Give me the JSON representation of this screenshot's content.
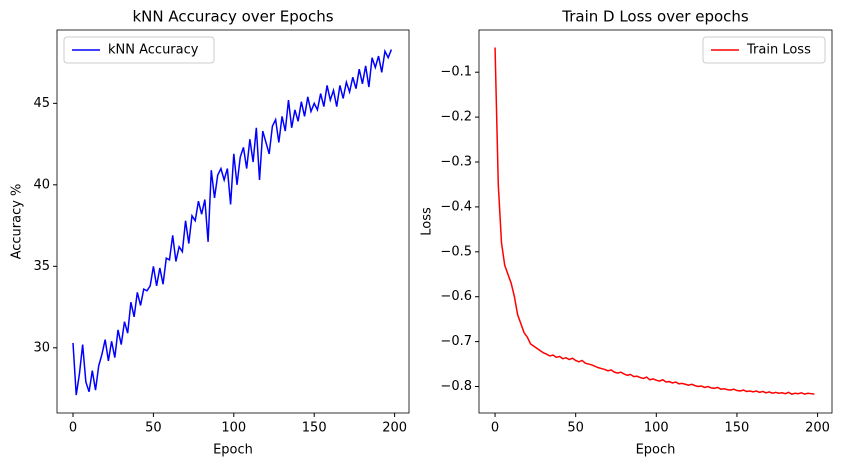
{
  "chart_data": [
    {
      "type": "line",
      "title": "kNN Accuracy over Epochs",
      "xlabel": "Epoch",
      "ylabel": "Accuracy %",
      "legend": "upper left",
      "xlim": [
        -9.95,
        208.95
      ],
      "xticks": [
        0,
        50,
        100,
        150,
        200
      ],
      "ylim": [
        26.0,
        49.5
      ],
      "yticks": [
        30,
        35,
        40,
        45
      ],
      "x": [
        0,
        2,
        4,
        6,
        8,
        10,
        12,
        14,
        16,
        18,
        20,
        22,
        24,
        26,
        28,
        30,
        32,
        34,
        36,
        38,
        40,
        42,
        44,
        46,
        48,
        50,
        52,
        54,
        56,
        58,
        60,
        62,
        64,
        66,
        68,
        70,
        72,
        74,
        76,
        78,
        80,
        82,
        84,
        86,
        88,
        90,
        92,
        94,
        96,
        98,
        100,
        102,
        104,
        106,
        108,
        110,
        112,
        114,
        116,
        118,
        120,
        122,
        124,
        126,
        128,
        130,
        132,
        134,
        136,
        138,
        140,
        142,
        144,
        146,
        148,
        150,
        152,
        154,
        156,
        158,
        160,
        162,
        164,
        166,
        168,
        170,
        172,
        174,
        176,
        178,
        180,
        182,
        184,
        186,
        188,
        190,
        192,
        194,
        196,
        198
      ],
      "series": [
        {
          "name": "kNN Accuracy",
          "color": "#0000ff",
          "values": [
            30.3,
            27.1,
            28.4,
            30.2,
            27.9,
            27.3,
            28.6,
            27.4,
            28.9,
            29.6,
            30.5,
            29.2,
            30.4,
            29.4,
            31.1,
            30.2,
            31.6,
            30.9,
            32.8,
            31.9,
            33.4,
            32.6,
            33.6,
            33.5,
            33.8,
            35.0,
            33.8,
            34.9,
            33.9,
            35.5,
            35.4,
            36.9,
            35.3,
            36.2,
            35.9,
            37.8,
            36.4,
            38.1,
            37.8,
            39.0,
            38.2,
            39.1,
            36.5,
            40.9,
            39.2,
            40.6,
            41.0,
            40.3,
            41.0,
            38.8,
            41.9,
            40.0,
            41.7,
            42.3,
            41.0,
            42.8,
            41.4,
            43.5,
            40.3,
            43.3,
            42.6,
            41.9,
            43.6,
            44.0,
            42.6,
            44.2,
            43.3,
            45.2,
            43.5,
            44.6,
            43.9,
            45.1,
            44.2,
            45.4,
            44.5,
            45.0,
            44.6,
            45.6,
            44.8,
            46.1,
            45.2,
            45.8,
            44.8,
            46.1,
            45.3,
            46.3,
            45.7,
            46.6,
            45.9,
            47.1,
            46.2,
            47.3,
            46.0,
            47.8,
            47.2,
            47.9,
            46.9,
            48.2,
            47.8,
            48.3
          ]
        }
      ]
    },
    {
      "type": "line",
      "title": "Train D Loss over epochs",
      "xlabel": "Epoch",
      "ylabel": "Loss",
      "legend": "upper right",
      "xlim": [
        -9.95,
        208.95
      ],
      "xticks": [
        0,
        50,
        100,
        150,
        200
      ],
      "ylim": [
        -0.859,
        -0.006
      ],
      "yticks": [
        {
          "value": -0.8,
          "label": "−0.8"
        },
        {
          "value": -0.7,
          "label": "−0.7"
        },
        {
          "value": -0.6,
          "label": "−0.6"
        },
        {
          "value": -0.5,
          "label": "−0.5"
        },
        {
          "value": -0.4,
          "label": "−0.4"
        },
        {
          "value": -0.3,
          "label": "−0.3"
        },
        {
          "value": -0.2,
          "label": "−0.2"
        },
        {
          "value": -0.1,
          "label": "−0.1"
        }
      ],
      "x": [
        0,
        2,
        4,
        6,
        8,
        10,
        12,
        14,
        16,
        18,
        20,
        22,
        24,
        26,
        28,
        30,
        32,
        34,
        36,
        38,
        40,
        42,
        44,
        46,
        48,
        50,
        52,
        54,
        56,
        58,
        60,
        62,
        64,
        66,
        68,
        70,
        72,
        74,
        76,
        78,
        80,
        82,
        84,
        86,
        88,
        90,
        92,
        94,
        96,
        98,
        100,
        102,
        104,
        106,
        108,
        110,
        112,
        114,
        116,
        118,
        120,
        122,
        124,
        126,
        128,
        130,
        132,
        134,
        136,
        138,
        140,
        142,
        144,
        146,
        148,
        150,
        152,
        154,
        156,
        158,
        160,
        162,
        164,
        166,
        168,
        170,
        172,
        174,
        176,
        178,
        180,
        182,
        184,
        186,
        188,
        190,
        192,
        194,
        196,
        198
      ],
      "series": [
        {
          "name": "Train Loss",
          "color": "#ff0000",
          "values": [
            -0.045,
            -0.35,
            -0.48,
            -0.53,
            -0.55,
            -0.57,
            -0.6,
            -0.64,
            -0.66,
            -0.68,
            -0.69,
            -0.705,
            -0.71,
            -0.715,
            -0.72,
            -0.725,
            -0.728,
            -0.732,
            -0.73,
            -0.735,
            -0.733,
            -0.738,
            -0.736,
            -0.74,
            -0.737,
            -0.742,
            -0.745,
            -0.742,
            -0.748,
            -0.75,
            -0.752,
            -0.755,
            -0.758,
            -0.76,
            -0.762,
            -0.765,
            -0.763,
            -0.768,
            -0.77,
            -0.768,
            -0.772,
            -0.775,
            -0.773,
            -0.778,
            -0.777,
            -0.78,
            -0.782,
            -0.779,
            -0.785,
            -0.783,
            -0.786,
            -0.788,
            -0.785,
            -0.79,
            -0.789,
            -0.792,
            -0.79,
            -0.794,
            -0.793,
            -0.795,
            -0.797,
            -0.795,
            -0.798,
            -0.8,
            -0.799,
            -0.802,
            -0.8,
            -0.803,
            -0.804,
            -0.802,
            -0.806,
            -0.805,
            -0.807,
            -0.808,
            -0.806,
            -0.809,
            -0.81,
            -0.808,
            -0.811,
            -0.81,
            -0.812,
            -0.81,
            -0.813,
            -0.811,
            -0.814,
            -0.812,
            -0.815,
            -0.813,
            -0.815,
            -0.814,
            -0.816,
            -0.813,
            -0.817,
            -0.815,
            -0.816,
            -0.814,
            -0.817,
            -0.815,
            -0.816,
            -0.817
          ]
        }
      ]
    }
  ]
}
